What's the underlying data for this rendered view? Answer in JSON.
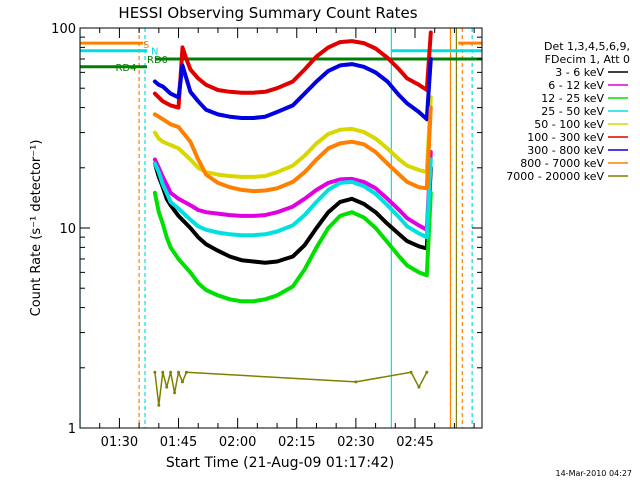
{
  "chart_data": {
    "type": "line",
    "title": "HESSI Observing Summary Count Rates",
    "xlabel": "Start Time (21-Aug-09 01:17:42)",
    "ylabel": "Count Rate (s⁻¹ detector⁻¹)",
    "yscale": "log",
    "ylim": [
      1,
      100
    ],
    "xlim_minutes": [
      80,
      182
    ],
    "x_tick_labels": [
      "01:30",
      "01:45",
      "02:00",
      "02:15",
      "02:30",
      "02:45"
    ],
    "x_tick_minutes": [
      90,
      105,
      120,
      135,
      150,
      165
    ],
    "y_tick_labels": [
      "1",
      "10",
      "100"
    ],
    "y_tick_values": [
      1,
      10,
      100
    ],
    "grid": false,
    "legend_position": "right",
    "legend_header": [
      "Det 1,3,4,5,6,9,",
      "FDecim 1, Att 0"
    ],
    "series": [
      {
        "name": "3 - 6 keV",
        "color": "#000000",
        "x": [
          99,
          100,
          101,
          102,
          103,
          105,
          108,
          110,
          112,
          115,
          118,
          121,
          124,
          127,
          130,
          134,
          137,
          140,
          143,
          146,
          149,
          152,
          155,
          158,
          161,
          163,
          166,
          168,
          169
        ],
        "y": [
          21,
          18,
          16,
          14,
          13,
          11.5,
          10,
          9,
          8.3,
          7.7,
          7.2,
          6.9,
          6.8,
          6.7,
          6.8,
          7.2,
          8.2,
          10,
          12,
          13.5,
          14,
          13.2,
          12,
          10.5,
          9.3,
          8.6,
          8.1,
          7.9,
          20
        ]
      },
      {
        "name": "6 - 12 keV",
        "color": "#e000e0",
        "x": [
          99,
          100,
          101,
          102,
          103,
          105,
          108,
          110,
          112,
          115,
          118,
          121,
          124,
          127,
          130,
          134,
          137,
          140,
          143,
          146,
          149,
          152,
          155,
          158,
          161,
          163,
          166,
          168,
          169
        ],
        "y": [
          22,
          20,
          18,
          16.5,
          15,
          14,
          13,
          12.3,
          12,
          11.8,
          11.6,
          11.5,
          11.5,
          11.6,
          12,
          12.8,
          14,
          15.5,
          16.8,
          17.5,
          17.6,
          17,
          15.8,
          14,
          12.3,
          11.2,
          10.3,
          9.8,
          24
        ]
      },
      {
        "name": "12 - 25 keV",
        "color": "#00e000",
        "x": [
          99,
          100,
          101,
          102,
          103,
          105,
          108,
          110,
          112,
          115,
          118,
          121,
          124,
          127,
          130,
          134,
          137,
          140,
          143,
          146,
          149,
          152,
          155,
          158,
          161,
          163,
          166,
          168,
          169
        ],
        "y": [
          15,
          12,
          10.5,
          9,
          8,
          7,
          6,
          5.3,
          4.9,
          4.6,
          4.4,
          4.3,
          4.3,
          4.4,
          4.6,
          5.1,
          6.2,
          8,
          10,
          11.5,
          12,
          11.3,
          10,
          8.5,
          7.2,
          6.5,
          6,
          5.8,
          15
        ]
      },
      {
        "name": "25 - 50 keV",
        "color": "#00e0e0",
        "x": [
          99,
          100,
          101,
          102,
          103,
          105,
          108,
          110,
          112,
          115,
          118,
          121,
          124,
          127,
          130,
          134,
          137,
          140,
          143,
          146,
          149,
          152,
          155,
          158,
          161,
          163,
          166,
          168,
          169
        ],
        "y": [
          21,
          19,
          16.5,
          15,
          13.5,
          12.5,
          11,
          10.2,
          9.8,
          9.5,
          9.3,
          9.2,
          9.2,
          9.3,
          9.6,
          10.3,
          11.6,
          13.5,
          15.5,
          16.8,
          17,
          16.2,
          14.8,
          13,
          11.3,
          10.2,
          9.4,
          9,
          22
        ]
      },
      {
        "name": "50 - 100 keV",
        "color": "#d8d800",
        "x": [
          99,
          100,
          101,
          102,
          103,
          105,
          108,
          110,
          112,
          115,
          118,
          121,
          124,
          127,
          130,
          134,
          137,
          140,
          143,
          146,
          149,
          152,
          155,
          158,
          161,
          163,
          166,
          168,
          169
        ],
        "y": [
          30,
          28,
          27,
          26.5,
          26,
          25,
          22,
          20,
          19,
          18.5,
          18.2,
          18,
          18,
          18.2,
          19,
          20.5,
          23,
          26.5,
          29.5,
          31,
          31.3,
          30.2,
          28,
          25,
          22,
          20.5,
          19.5,
          19,
          45
        ]
      },
      {
        "name": "100 - 300 keV",
        "color": "#e00000",
        "x": [
          99,
          100,
          101,
          102,
          103,
          105,
          106,
          107,
          108,
          110,
          112,
          115,
          118,
          121,
          124,
          127,
          130,
          134,
          137,
          140,
          143,
          146,
          149,
          152,
          155,
          158,
          161,
          163,
          166,
          168,
          169
        ],
        "y": [
          47,
          45,
          43,
          42,
          41,
          40,
          80,
          70,
          62,
          56,
          52,
          49,
          48,
          47.5,
          47.5,
          48,
          50,
          54,
          62,
          72,
          80,
          85,
          86,
          84,
          79,
          71,
          62,
          56,
          52,
          49,
          95
        ]
      },
      {
        "name": "300 - 800 keV",
        "color": "#0000e0",
        "x": [
          99,
          100,
          101,
          102,
          103,
          105,
          106,
          107,
          108,
          110,
          112,
          115,
          118,
          121,
          124,
          127,
          130,
          134,
          137,
          140,
          143,
          146,
          149,
          152,
          155,
          158,
          161,
          163,
          166,
          168,
          169
        ],
        "y": [
          54,
          52,
          51,
          49,
          47,
          45,
          65,
          56,
          48,
          43,
          39,
          37,
          36,
          35.5,
          35.5,
          36,
          38,
          41,
          47,
          54,
          61,
          65,
          66,
          64,
          60,
          54,
          46,
          42,
          38,
          35,
          70
        ]
      },
      {
        "name": "800 - 7000 keV",
        "color": "#ff8000",
        "x": [
          99,
          100,
          101,
          102,
          103,
          105,
          108,
          110,
          112,
          115,
          118,
          121,
          124,
          127,
          130,
          134,
          137,
          140,
          143,
          146,
          149,
          152,
          155,
          158,
          161,
          163,
          166,
          168,
          169
        ],
        "y": [
          37,
          36,
          35,
          34,
          33,
          32,
          27,
          22,
          18.5,
          16.8,
          16,
          15.5,
          15.3,
          15.4,
          15.8,
          17,
          19,
          22,
          25,
          26.5,
          27,
          26.2,
          24,
          21,
          18.5,
          17,
          16,
          15.8,
          40
        ]
      },
      {
        "name": "7000 - 20000 keV",
        "color": "#808000",
        "x": [
          99,
          100,
          101,
          102,
          103,
          104,
          105,
          106,
          107,
          150,
          164,
          166,
          168
        ],
        "y": [
          1.9,
          1.3,
          1.9,
          1.6,
          1.9,
          1.5,
          1.9,
          1.7,
          1.9,
          1.7,
          1.9,
          1.6,
          1.9
        ]
      }
    ],
    "annotations": [
      {
        "text": "S",
        "color": "#ff8000",
        "x": 96,
        "y": 83
      },
      {
        "text": "N",
        "color": "#00e0e0",
        "x": 98,
        "y": 77
      },
      {
        "text": "RD0",
        "color": "#008000",
        "x": 97,
        "y": 70
      },
      {
        "text": "RD4",
        "color": "#008000",
        "x": 89,
        "y": 64
      }
    ],
    "flag_lines": [
      {
        "name": "SAA/Night orange bar",
        "color": "#ff8000",
        "y": 84,
        "segments": [
          [
            80,
            96
          ],
          [
            176,
            182
          ]
        ]
      },
      {
        "name": "Night cyan bar",
        "color": "#00e0e0",
        "y": 77,
        "segments": [
          [
            80,
            97
          ],
          [
            159,
            182
          ]
        ]
      },
      {
        "name": "RD0 green bar",
        "color": "#008000",
        "y": 70,
        "segments": [
          [
            99,
            182
          ]
        ]
      },
      {
        "name": "RD4 green bar",
        "color": "#008000",
        "y": 64,
        "segments": [
          [
            80,
            97
          ]
        ]
      }
    ],
    "vertical_markers": [
      {
        "color": "#00e0e0",
        "x": 80,
        "style": "solid"
      },
      {
        "color": "#00e0e0",
        "x": 96.5,
        "style": "dashed"
      },
      {
        "color": "#ff8000",
        "x": 95,
        "style": "dashed"
      },
      {
        "color": "#00e0e0",
        "x": 159,
        "style": "solid"
      },
      {
        "color": "#ff8000",
        "x": 174,
        "style": "solid"
      },
      {
        "color": "#808000",
        "x": 175.5,
        "style": "solid"
      },
      {
        "color": "#ff8000",
        "x": 177,
        "style": "dashed"
      },
      {
        "color": "#00e0e0",
        "x": 179.5,
        "style": "dashed"
      }
    ]
  },
  "footer_timestamp": "14-Mar-2010 04:27"
}
